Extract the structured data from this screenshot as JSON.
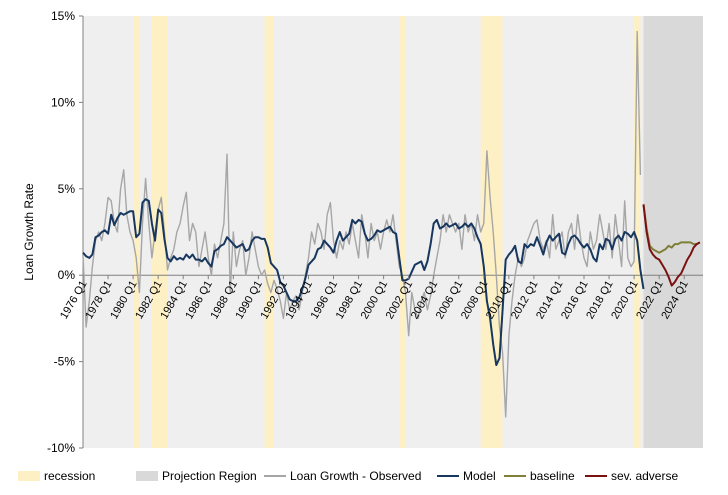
{
  "chart_data": {
    "type": "line",
    "title": "",
    "ylabel": "Loan Growth Rate",
    "xlabel": "",
    "ylim": [
      -10,
      15
    ],
    "xlim": [
      1976.0,
      2025.5
    ],
    "y_ticks": [
      {
        "value": 15,
        "label": "15%"
      },
      {
        "value": 10,
        "label": "10%"
      },
      {
        "value": 5,
        "label": "5%"
      },
      {
        "value": 0,
        "label": "0%"
      },
      {
        "value": -5,
        "label": "-5%"
      },
      {
        "value": -10,
        "label": "-10%"
      }
    ],
    "x_ticks": [
      {
        "value": 1976,
        "label": "1976 Q1"
      },
      {
        "value": 1978,
        "label": "1978 Q1"
      },
      {
        "value": 1980,
        "label": "1980 Q1"
      },
      {
        "value": 1982,
        "label": "1982 Q1"
      },
      {
        "value": 1984,
        "label": "1984 Q1"
      },
      {
        "value": 1986,
        "label": "1986 Q1"
      },
      {
        "value": 1988,
        "label": "1988 Q1"
      },
      {
        "value": 1990,
        "label": "1990 Q1"
      },
      {
        "value": 1992,
        "label": "1992 Q1"
      },
      {
        "value": 1994,
        "label": "1994 Q1"
      },
      {
        "value": 1996,
        "label": "1996 Q1"
      },
      {
        "value": 1998,
        "label": "1998 Q1"
      },
      {
        "value": 2000,
        "label": "2000 Q1"
      },
      {
        "value": 2002,
        "label": "2002 Q1"
      },
      {
        "value": 2004,
        "label": "2004 Q1"
      },
      {
        "value": 2006,
        "label": "2006 Q1"
      },
      {
        "value": 2008,
        "label": "2008 Q1"
      },
      {
        "value": 2010,
        "label": "2010 Q1"
      },
      {
        "value": 2012,
        "label": "2012 Q1"
      },
      {
        "value": 2014,
        "label": "2014 Q1"
      },
      {
        "value": 2016,
        "label": "2016 Q1"
      },
      {
        "value": 2018,
        "label": "2018 Q1"
      },
      {
        "value": 2020,
        "label": "2020 Q1"
      },
      {
        "value": 2022,
        "label": "2022 Q1"
      },
      {
        "value": 2024,
        "label": "2024 Q1"
      }
    ],
    "recessions": [
      [
        1980.0,
        1980.5
      ],
      [
        1981.5,
        1982.75
      ],
      [
        1990.5,
        1991.25
      ],
      [
        2001.25,
        2001.75
      ],
      [
        2007.75,
        2009.5
      ],
      [
        2020.0,
        2020.5
      ]
    ],
    "projection_region": [
      2020.75,
      2025.5
    ],
    "legend": [
      {
        "label": "recession",
        "kind": "patch",
        "color": "#fdf0c4"
      },
      {
        "label": "Projection Region",
        "kind": "patch",
        "color": "#d9d9d9"
      },
      {
        "label": "Loan Growth - Observed",
        "kind": "line",
        "color": "#a6a6a6"
      },
      {
        "label": "Model",
        "kind": "line",
        "color": "#17375e"
      },
      {
        "label": "baseline",
        "kind": "line",
        "color": "#7f7f3a"
      },
      {
        "label": "sev. adverse",
        "kind": "line",
        "color": "#7b1010"
      }
    ],
    "series": [
      {
        "name": "Loan Growth - Observed",
        "color": "#a6a6a6",
        "x": [
          1976.0,
          1976.25,
          1976.5,
          1976.75,
          1977.0,
          1977.25,
          1977.5,
          1977.75,
          1978.0,
          1978.25,
          1978.5,
          1978.75,
          1979.0,
          1979.25,
          1979.5,
          1979.75,
          1980.0,
          1980.25,
          1980.5,
          1980.75,
          1981.0,
          1981.25,
          1981.5,
          1981.75,
          1982.0,
          1982.25,
          1982.5,
          1982.75,
          1983.0,
          1983.25,
          1983.5,
          1983.75,
          1984.0,
          1984.25,
          1984.5,
          1984.75,
          1985.0,
          1985.25,
          1985.5,
          1985.75,
          1986.0,
          1986.25,
          1986.5,
          1986.75,
          1987.0,
          1987.25,
          1987.5,
          1987.75,
          1988.0,
          1988.25,
          1988.5,
          1988.75,
          1989.0,
          1989.25,
          1989.5,
          1989.75,
          1990.0,
          1990.25,
          1990.5,
          1990.75,
          1991.0,
          1991.25,
          1991.5,
          1991.75,
          1992.0,
          1992.25,
          1992.5,
          1992.75,
          1993.0,
          1993.25,
          1993.5,
          1993.75,
          1994.0,
          1994.25,
          1994.5,
          1994.75,
          1995.0,
          1995.25,
          1995.5,
          1995.75,
          1996.0,
          1996.25,
          1996.5,
          1996.75,
          1997.0,
          1997.25,
          1997.5,
          1997.75,
          1998.0,
          1998.25,
          1998.5,
          1998.75,
          1999.0,
          1999.25,
          1999.5,
          1999.75,
          2000.0,
          2000.25,
          2000.5,
          2000.75,
          2001.0,
          2001.25,
          2001.5,
          2001.75,
          2002.0,
          2002.25,
          2002.5,
          2002.75,
          2003.0,
          2003.25,
          2003.5,
          2003.75,
          2004.0,
          2004.25,
          2004.5,
          2004.75,
          2005.0,
          2005.25,
          2005.5,
          2005.75,
          2006.0,
          2006.25,
          2006.5,
          2006.75,
          2007.0,
          2007.25,
          2007.5,
          2007.75,
          2008.0,
          2008.25,
          2008.5,
          2008.75,
          2009.0,
          2009.25,
          2009.5,
          2009.75,
          2010.0,
          2010.25,
          2010.5,
          2010.75,
          2011.0,
          2011.25,
          2011.5,
          2011.75,
          2012.0,
          2012.25,
          2012.5,
          2012.75,
          2013.0,
          2013.25,
          2013.5,
          2013.75,
          2014.0,
          2014.25,
          2014.5,
          2014.75,
          2015.0,
          2015.25,
          2015.5,
          2015.75,
          2016.0,
          2016.25,
          2016.5,
          2016.75,
          2017.0,
          2017.25,
          2017.5,
          2017.75,
          2018.0,
          2018.25,
          2018.5,
          2018.75,
          2019.0,
          2019.25,
          2019.5,
          2019.75,
          2020.0,
          2020.25,
          2020.5
        ],
        "values": [
          1.2,
          -3.0,
          -1.5,
          0.5,
          2.0,
          2.5,
          2.0,
          3.0,
          4.5,
          4.3,
          3.0,
          2.5,
          5.0,
          6.1,
          3.5,
          2.5,
          2.0,
          1.0,
          -1.0,
          3.0,
          5.6,
          3.0,
          1.0,
          2.5,
          3.8,
          4.5,
          2.5,
          0.3,
          1.0,
          1.5,
          2.5,
          3.0,
          4.0,
          4.8,
          2.0,
          3.0,
          2.5,
          0.5,
          1.5,
          2.5,
          1.0,
          0.0,
          1.8,
          1.0,
          2.0,
          3.0,
          7.0,
          -1.0,
          2.5,
          0.5,
          1.5,
          2.0,
          0.0,
          1.0,
          2.5,
          1.5,
          0.5,
          0.0,
          0.3,
          -0.5,
          -1.0,
          -0.3,
          -0.8,
          -1.5,
          -2.5,
          -1.0,
          -2.0,
          -1.5,
          -1.2,
          -2.0,
          -1.0,
          0.0,
          1.0,
          2.5,
          1.8,
          3.0,
          2.5,
          1.5,
          3.5,
          4.2,
          2.0,
          1.0,
          2.0,
          1.5,
          2.5,
          1.8,
          3.0,
          2.0,
          1.0,
          3.5,
          2.5,
          1.0,
          3.0,
          2.0,
          2.5,
          1.5,
          2.5,
          3.2,
          2.5,
          3.5,
          2.0,
          0.5,
          0.0,
          -1.0,
          -3.5,
          -1.0,
          -2.0,
          -2.5,
          -1.5,
          -1.0,
          -2.0,
          -1.2,
          0.0,
          1.0,
          2.0,
          3.5,
          2.5,
          3.5,
          3.0,
          2.5,
          3.0,
          1.5,
          3.5,
          2.5,
          3.0,
          2.0,
          3.5,
          2.5,
          3.0,
          7.2,
          4.5,
          2.5,
          0.0,
          -3.0,
          -4.5,
          -8.2,
          -3.5,
          -1.5,
          0.0,
          1.0,
          0.5,
          1.0,
          2.0,
          2.5,
          3.0,
          3.2,
          2.0,
          1.5,
          2.0,
          1.0,
          3.5,
          1.5,
          2.0,
          2.5,
          1.0,
          2.5,
          3.0,
          1.5,
          3.5,
          2.0,
          1.0,
          0.5,
          2.5,
          1.5,
          2.0,
          3.5,
          2.5,
          1.5,
          3.0,
          1.0,
          3.5,
          2.0,
          0.5,
          4.3,
          1.0,
          0.5,
          0.8,
          14.1,
          5.8
        ]
      },
      {
        "name": "Model",
        "color": "#17375e",
        "x": [
          1976.0,
          1976.25,
          1976.5,
          1976.75,
          1977.0,
          1977.25,
          1977.5,
          1977.75,
          1978.0,
          1978.25,
          1978.5,
          1978.75,
          1979.0,
          1979.25,
          1979.5,
          1979.75,
          1980.0,
          1980.25,
          1980.5,
          1980.75,
          1981.0,
          1981.25,
          1981.5,
          1981.75,
          1982.0,
          1982.25,
          1982.5,
          1982.75,
          1983.0,
          1983.25,
          1983.5,
          1983.75,
          1984.0,
          1984.25,
          1984.5,
          1984.75,
          1985.0,
          1985.25,
          1985.5,
          1985.75,
          1986.0,
          1986.25,
          1986.5,
          1986.75,
          1987.0,
          1987.25,
          1987.5,
          1987.75,
          1988.0,
          1988.25,
          1988.5,
          1988.75,
          1989.0,
          1989.25,
          1989.5,
          1989.75,
          1990.0,
          1990.25,
          1990.5,
          1990.75,
          1991.0,
          1991.25,
          1991.5,
          1991.75,
          1992.0,
          1992.25,
          1992.5,
          1992.75,
          1993.0,
          1993.25,
          1993.5,
          1993.75,
          1994.0,
          1994.25,
          1994.5,
          1994.75,
          1995.0,
          1995.25,
          1995.5,
          1995.75,
          1996.0,
          1996.25,
          1996.5,
          1996.75,
          1997.0,
          1997.25,
          1997.5,
          1997.75,
          1998.0,
          1998.25,
          1998.5,
          1998.75,
          1999.0,
          1999.25,
          1999.5,
          1999.75,
          2000.0,
          2000.25,
          2000.5,
          2000.75,
          2001.0,
          2001.25,
          2001.5,
          2001.75,
          2002.0,
          2002.25,
          2002.5,
          2002.75,
          2003.0,
          2003.25,
          2003.5,
          2003.75,
          2004.0,
          2004.25,
          2004.5,
          2004.75,
          2005.0,
          2005.25,
          2005.5,
          2005.75,
          2006.0,
          2006.25,
          2006.5,
          2006.75,
          2007.0,
          2007.25,
          2007.5,
          2007.75,
          2008.0,
          2008.25,
          2008.5,
          2008.75,
          2009.0,
          2009.25,
          2009.5,
          2009.75,
          2010.0,
          2010.25,
          2010.5,
          2010.75,
          2011.0,
          2011.25,
          2011.5,
          2011.75,
          2012.0,
          2012.25,
          2012.5,
          2012.75,
          2013.0,
          2013.25,
          2013.5,
          2013.75,
          2014.0,
          2014.25,
          2014.5,
          2014.75,
          2015.0,
          2015.25,
          2015.5,
          2015.75,
          2016.0,
          2016.25,
          2016.5,
          2016.75,
          2017.0,
          2017.25,
          2017.5,
          2017.75,
          2018.0,
          2018.25,
          2018.5,
          2018.75,
          2019.0,
          2019.25,
          2019.5,
          2019.75,
          2020.0,
          2020.25,
          2020.5,
          2020.75
        ],
        "values": [
          1.3,
          1.1,
          1.0,
          1.2,
          2.2,
          2.3,
          2.5,
          2.6,
          2.4,
          3.5,
          2.9,
          3.3,
          3.6,
          3.5,
          3.6,
          3.7,
          3.7,
          2.2,
          2.4,
          4.2,
          4.4,
          4.3,
          3.0,
          2.0,
          3.8,
          3.6,
          2.1,
          1.0,
          0.8,
          1.1,
          0.9,
          1.0,
          0.9,
          1.2,
          1.0,
          1.2,
          0.9,
          0.9,
          0.8,
          1.0,
          0.7,
          0.5,
          1.4,
          1.5,
          1.7,
          1.8,
          2.2,
          2.0,
          1.8,
          1.6,
          1.7,
          1.8,
          1.4,
          1.5,
          2.0,
          2.2,
          2.2,
          2.1,
          2.1,
          1.6,
          0.7,
          0.5,
          0.3,
          -0.4,
          -0.6,
          -1.0,
          -1.4,
          -1.5,
          -1.5,
          -1.3,
          -0.8,
          -0.2,
          0.6,
          0.8,
          1.0,
          1.5,
          1.6,
          2.0,
          1.8,
          1.6,
          1.3,
          2.0,
          2.5,
          2.0,
          2.2,
          2.4,
          3.2,
          3.0,
          3.2,
          3.1,
          2.4,
          2.0,
          2.1,
          2.3,
          2.6,
          2.5,
          2.6,
          2.7,
          2.8,
          2.5,
          2.4,
          1.0,
          -0.3,
          -0.3,
          -0.2,
          0.2,
          0.6,
          0.7,
          0.8,
          0.3,
          0.8,
          1.8,
          3.0,
          3.2,
          2.7,
          2.8,
          3.0,
          2.8,
          2.9,
          3.0,
          2.7,
          2.8,
          3.0,
          2.8,
          3.0,
          2.7,
          2.2,
          1.8,
          0.5,
          -1.5,
          -2.5,
          -4.0,
          -5.2,
          -4.8,
          -2.0,
          0.9,
          1.2,
          1.4,
          1.7,
          0.8,
          0.7,
          1.8,
          1.6,
          1.8,
          1.7,
          2.2,
          1.7,
          1.2,
          1.9,
          2.3,
          2.0,
          2.2,
          2.4,
          1.3,
          1.2,
          1.8,
          2.2,
          2.3,
          2.1,
          1.8,
          1.6,
          1.8,
          1.5,
          1.0,
          0.8,
          1.8,
          1.5,
          2.1,
          2.0,
          1.5,
          2.1,
          2.3,
          2.0,
          2.5,
          2.4,
          2.2,
          2.5,
          2.0,
          0.3,
          -0.8
        ]
      },
      {
        "name": "baseline",
        "color": "#7f7f3a",
        "x": [
          2020.75,
          2021.0,
          2021.25,
          2021.5,
          2021.75,
          2022.0,
          2022.25,
          2022.5,
          2022.75,
          2023.0,
          2023.25,
          2023.5,
          2023.75,
          2024.0,
          2024.25,
          2024.5,
          2024.75,
          2025.0,
          2025.25
        ],
        "values": [
          4.1,
          2.7,
          1.7,
          1.5,
          1.4,
          1.3,
          1.4,
          1.5,
          1.7,
          1.6,
          1.8,
          1.8,
          1.9,
          1.9,
          1.9,
          1.9,
          1.8,
          1.8,
          1.9
        ]
      },
      {
        "name": "sev. adverse",
        "color": "#7b1010",
        "x": [
          2020.75,
          2021.0,
          2021.25,
          2021.5,
          2021.75,
          2022.0,
          2022.25,
          2022.5,
          2022.75,
          2023.0,
          2023.25,
          2023.5,
          2023.75,
          2024.0,
          2024.25,
          2024.5,
          2024.75,
          2025.0,
          2025.25
        ],
        "values": [
          4.1,
          2.5,
          1.5,
          1.2,
          1.0,
          0.9,
          0.6,
          0.3,
          -0.1,
          -0.6,
          -0.4,
          -0.1,
          0.1,
          0.5,
          0.9,
          1.2,
          1.6,
          1.8,
          1.9
        ]
      }
    ]
  }
}
